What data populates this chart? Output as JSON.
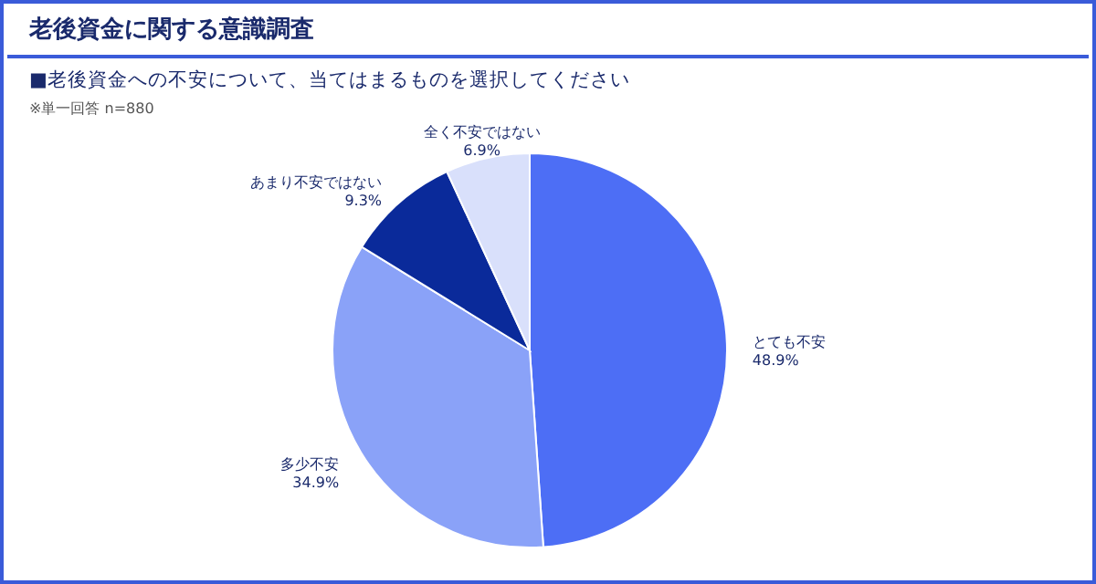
{
  "chart_data": {
    "type": "pie",
    "title": "老後資金に関する意識調査",
    "subtitle": "■老後資金への不安について、当てはまるものを選択してください",
    "annotations": [
      "※単一回答 n=880"
    ],
    "categories": [
      "とても不安",
      "多少不安",
      "あまり不安ではない",
      "全く不安ではない"
    ],
    "values": [
      48.9,
      34.9,
      9.3,
      6.9
    ],
    "colors": [
      "#4d6ef5",
      "#8aa2f8",
      "#0a2a9a",
      "#d9e0fb"
    ],
    "value_labels": [
      "48.9%",
      "34.9%",
      "9.3%",
      "6.9%"
    ]
  }
}
